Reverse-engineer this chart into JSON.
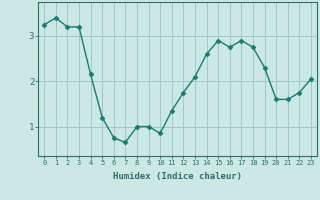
{
  "x": [
    0,
    1,
    2,
    3,
    4,
    5,
    6,
    7,
    8,
    9,
    10,
    11,
    12,
    13,
    14,
    15,
    16,
    17,
    18,
    19,
    20,
    21,
    22,
    23
  ],
  "y": [
    3.25,
    3.4,
    3.2,
    3.2,
    2.15,
    1.2,
    0.75,
    0.65,
    1.0,
    1.0,
    0.85,
    1.35,
    1.75,
    2.1,
    2.6,
    2.9,
    2.75,
    2.9,
    2.75,
    2.3,
    1.6,
    1.6,
    1.75,
    2.05
  ],
  "line_color": "#1a7a6e",
  "marker": "D",
  "marker_size": 2.5,
  "bg_color": "#cce8e4",
  "grid_color": "#a0c8c4",
  "xlabel": "Humidex (Indice chaleur)",
  "yticks": [
    1,
    2,
    3
  ],
  "xticks": [
    0,
    1,
    2,
    3,
    4,
    5,
    6,
    7,
    8,
    9,
    10,
    11,
    12,
    13,
    14,
    15,
    16,
    17,
    18,
    19,
    20,
    21,
    22,
    23
  ],
  "xlim": [
    -0.5,
    23.5
  ],
  "ylim": [
    0.35,
    3.75
  ],
  "tick_color": "#2d6e6e",
  "label_color": "#2d6e6e",
  "font_family": "monospace"
}
